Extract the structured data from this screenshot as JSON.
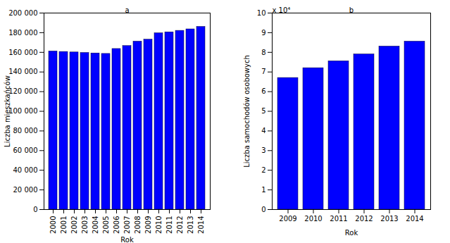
{
  "chart_data": [
    {
      "type": "bar",
      "title": "a",
      "xlabel": "Rok",
      "ylabel": "Liczba mieszkańców",
      "categories": [
        "2000",
        "2001",
        "2002",
        "2003",
        "2004",
        "2005",
        "2006",
        "2007",
        "2008",
        "2009",
        "2010",
        "2011",
        "2012",
        "2013",
        "2014"
      ],
      "values": [
        161000,
        160500,
        160000,
        159500,
        159000,
        158500,
        163500,
        166500,
        171000,
        173000,
        179500,
        180500,
        182000,
        183500,
        186000
      ],
      "color": "#0000ff",
      "ylim": [
        0,
        200000
      ],
      "yticks": [
        0,
        {
          "value": 20000,
          "label": "20 000"
        },
        {
          "value": 40000,
          "label": "40 000"
        },
        {
          "value": 60000,
          "label": "60 000"
        },
        {
          "value": 80000,
          "label": "80 000"
        },
        {
          "value": 100000,
          "label": "100 000"
        },
        {
          "value": 120000,
          "label": "120 000"
        },
        {
          "value": 140000,
          "label": "140 000"
        },
        {
          "value": 160000,
          "label": "160 000"
        },
        {
          "value": 180000,
          "label": "180 000"
        },
        {
          "value": 200000,
          "label": "200 000"
        }
      ],
      "grid": false
    },
    {
      "type": "bar",
      "title": "b",
      "xlabel": "Rok",
      "ylabel": "Liczba samochodów osobowych",
      "annotation": "x 10⁴",
      "categories": [
        "2009",
        "2010",
        "2011",
        "2012",
        "2013",
        "2014"
      ],
      "values": [
        6.7,
        7.2,
        7.55,
        7.9,
        8.3,
        8.55
      ],
      "color": "#0000ff",
      "ylim": [
        0,
        10
      ],
      "yticks": [
        0,
        1,
        2,
        3,
        4,
        5,
        6,
        7,
        8,
        9,
        10
      ],
      "grid": false
    }
  ]
}
